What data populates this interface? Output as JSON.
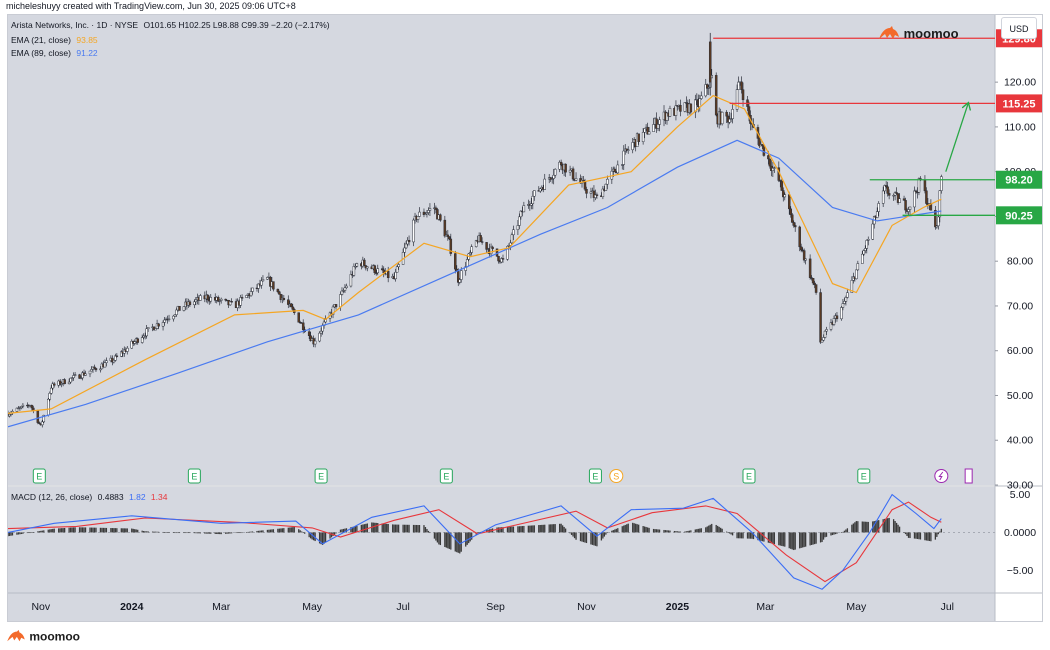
{
  "attribution": "micheleshuyy created with TradingView.com, Jun 30, 2025 09:06 UTC+8",
  "legend": {
    "symbol": "Arista Networks, Inc. · 1D · NYSE",
    "ohlc": "O101.65 H102.25 L98.88 C99.39 −2.20 (−2.17%)",
    "ema21_label": "EMA (21, close)",
    "ema21_value": "93.85",
    "ema89_label": "EMA (89, close)",
    "ema89_value": "91.22",
    "macd_label": "MACD (12, 26, close)",
    "macd_hist": "0.4883",
    "macd_line": "1.82",
    "macd_signal": "1.34"
  },
  "brand_name": "moomoo",
  "currency_button": "USD",
  "colors": {
    "background": "#d5d8e0",
    "ema21": "#f5a623",
    "ema89": "#4a7bf0",
    "macd": "#3b6ef5",
    "signal": "#e8373c",
    "resistance": "#e8373c",
    "support": "#28a745",
    "up_candle": "#ffffff",
    "down_candle": "#5a3a22"
  },
  "chart_data": [
    {
      "type": "candlestick",
      "title": "Arista Networks, Inc. · 1D · NYSE",
      "xlabel": "",
      "ylabel": "",
      "x_ticks": [
        "Nov",
        "2024",
        "Mar",
        "May",
        "Jul",
        "Sep",
        "Nov",
        "2025",
        "Mar",
        "May",
        "Jul"
      ],
      "y_ticks": [
        "120.00",
        "110.00",
        "100.00",
        "90.00",
        "80.00",
        "70.00",
        "60.00",
        "50.00",
        "40.00",
        "30.00"
      ],
      "ylim": [
        30,
        135
      ],
      "price_path": [
        [
          "2023-10-10",
          46
        ],
        [
          "2023-10-25",
          48
        ],
        [
          "2023-11-01",
          43
        ],
        [
          "2023-11-08",
          52
        ],
        [
          "2023-12-01",
          55
        ],
        [
          "2023-12-20",
          58
        ],
        [
          "2024-01-10",
          64
        ],
        [
          "2024-02-05",
          70
        ],
        [
          "2024-02-20",
          72
        ],
        [
          "2024-03-10",
          70
        ],
        [
          "2024-04-01",
          76
        ],
        [
          "2024-04-20",
          68
        ],
        [
          "2024-05-02",
          62
        ],
        [
          "2024-05-20",
          72
        ],
        [
          "2024-06-01",
          80
        ],
        [
          "2024-06-25",
          76
        ],
        [
          "2024-07-10",
          90
        ],
        [
          "2024-07-22",
          92
        ],
        [
          "2024-08-01",
          84
        ],
        [
          "2024-08-07",
          76
        ],
        [
          "2024-08-20",
          85
        ],
        [
          "2024-09-06",
          80
        ],
        [
          "2024-09-20",
          92
        ],
        [
          "2024-10-15",
          102
        ],
        [
          "2024-11-01",
          96
        ],
        [
          "2024-11-08",
          94
        ],
        [
          "2024-12-01",
          106
        ],
        [
          "2024-12-25",
          113
        ],
        [
          "2025-01-15",
          115
        ],
        [
          "2025-01-24",
          121
        ],
        [
          "2025-01-27",
          112
        ],
        [
          "2025-02-05",
          112
        ],
        [
          "2025-02-12",
          120
        ],
        [
          "2025-02-20",
          110
        ],
        [
          "2025-03-10",
          98
        ],
        [
          "2025-03-25",
          83
        ],
        [
          "2025-04-04",
          73
        ],
        [
          "2025-04-07",
          62
        ],
        [
          "2025-04-22",
          70
        ],
        [
          "2025-05-08",
          84
        ],
        [
          "2025-05-20",
          96
        ],
        [
          "2025-06-05",
          92
        ],
        [
          "2025-06-13",
          98
        ],
        [
          "2025-06-24",
          87
        ],
        [
          "2025-06-27",
          99
        ]
      ],
      "spike": {
        "date": "2025-01-23",
        "high": 131
      },
      "ema21_path": [
        [
          "2023-10-10",
          46
        ],
        [
          "2023-11-08",
          47
        ],
        [
          "2024-01-10",
          58
        ],
        [
          "2024-03-10",
          68
        ],
        [
          "2024-04-25",
          69
        ],
        [
          "2024-05-10",
          67
        ],
        [
          "2024-06-01",
          73
        ],
        [
          "2024-07-15",
          84
        ],
        [
          "2024-08-15",
          81
        ],
        [
          "2024-09-10",
          83
        ],
        [
          "2024-10-20",
          97
        ],
        [
          "2024-12-01",
          100
        ],
        [
          "2025-01-01",
          110
        ],
        [
          "2025-01-25",
          117
        ],
        [
          "2025-02-15",
          114
        ],
        [
          "2025-03-10",
          100
        ],
        [
          "2025-04-15",
          75
        ],
        [
          "2025-05-01",
          73
        ],
        [
          "2025-05-25",
          88
        ],
        [
          "2025-06-15",
          92
        ],
        [
          "2025-06-27",
          93.85
        ]
      ],
      "ema89_path": [
        [
          "2023-10-10",
          43
        ],
        [
          "2023-12-01",
          48
        ],
        [
          "2024-02-01",
          55
        ],
        [
          "2024-04-01",
          62
        ],
        [
          "2024-06-01",
          68
        ],
        [
          "2024-08-01",
          77
        ],
        [
          "2024-10-01",
          86
        ],
        [
          "2024-11-15",
          92
        ],
        [
          "2025-01-01",
          101
        ],
        [
          "2025-02-10",
          107
        ],
        [
          "2025-03-10",
          103
        ],
        [
          "2025-04-15",
          92
        ],
        [
          "2025-05-15",
          89
        ],
        [
          "2025-06-27",
          91.22
        ]
      ],
      "horizontal_lines": [
        {
          "value": 129.8,
          "label": "129.80",
          "kind": "resistance",
          "from": "2025-01-25"
        },
        {
          "value": 115.25,
          "label": "115.25",
          "kind": "resistance",
          "from": "2025-02-05"
        },
        {
          "value": 98.2,
          "label": "98.20",
          "kind": "support",
          "from": "2025-05-10"
        },
        {
          "value": 90.25,
          "label": "90.25",
          "kind": "support",
          "from": "2025-06-01"
        }
      ],
      "projection_arrow": {
        "from": [
          "2025-06-30",
          100
        ],
        "to": [
          "2025-07-15",
          115.25
        ]
      },
      "earnings_markers": [
        "2023-10-31",
        "2024-02-12",
        "2024-05-07",
        "2024-07-30",
        "2024-11-07",
        "2025-02-18",
        "2025-05-06"
      ],
      "dividend_markers": [
        "2024-11-21"
      ],
      "split_markers": [
        "2025-06-27"
      ],
      "upcoming_marker": "2025-07-15"
    },
    {
      "type": "macd",
      "title": "MACD (12, 26, close)",
      "y_ticks": [
        "5.00",
        "0.0000",
        "−5.00"
      ],
      "ylim": [
        -8,
        6
      ],
      "macd_path": [
        [
          "2023-10-10",
          0
        ],
        [
          "2023-11-10",
          1.2
        ],
        [
          "2024-01-01",
          2.2
        ],
        [
          "2024-03-01",
          1.2
        ],
        [
          "2024-04-20",
          1.5
        ],
        [
          "2024-05-08",
          -1.5
        ],
        [
          "2024-06-10",
          2.0
        ],
        [
          "2024-07-15",
          3.5
        ],
        [
          "2024-08-08",
          -1.5
        ],
        [
          "2024-09-01",
          1.0
        ],
        [
          "2024-10-15",
          3.5
        ],
        [
          "2024-11-08",
          -0.5
        ],
        [
          "2024-12-01",
          3.0
        ],
        [
          "2025-01-05",
          3.2
        ],
        [
          "2025-01-25",
          4.5
        ],
        [
          "2025-02-20",
          0.0
        ],
        [
          "2025-03-20",
          -6.0
        ],
        [
          "2025-04-08",
          -7.5
        ],
        [
          "2025-04-22",
          -5.0
        ],
        [
          "2025-05-10",
          0.0
        ],
        [
          "2025-05-25",
          5.0
        ],
        [
          "2025-06-10",
          2.5
        ],
        [
          "2025-06-22",
          0.5
        ],
        [
          "2025-06-27",
          1.82
        ]
      ],
      "signal_path": [
        [
          "2023-10-10",
          0.5
        ],
        [
          "2023-11-25",
          0.8
        ],
        [
          "2024-01-10",
          1.9
        ],
        [
          "2024-03-15",
          1.3
        ],
        [
          "2024-05-01",
          0.6
        ],
        [
          "2024-05-20",
          -0.6
        ],
        [
          "2024-06-25",
          1.6
        ],
        [
          "2024-07-25",
          3.0
        ],
        [
          "2024-08-20",
          -0.2
        ],
        [
          "2024-09-15",
          1.0
        ],
        [
          "2024-10-25",
          2.8
        ],
        [
          "2024-11-15",
          0.6
        ],
        [
          "2024-12-15",
          2.6
        ],
        [
          "2025-01-20",
          3.5
        ],
        [
          "2025-02-10",
          2.5
        ],
        [
          "2025-03-15",
          -3.0
        ],
        [
          "2025-04-10",
          -6.5
        ],
        [
          "2025-05-01",
          -4.0
        ],
        [
          "2025-05-25",
          3.0
        ],
        [
          "2025-06-05",
          4.0
        ],
        [
          "2025-06-20",
          2.0
        ],
        [
          "2025-06-27",
          1.34
        ]
      ]
    }
  ]
}
